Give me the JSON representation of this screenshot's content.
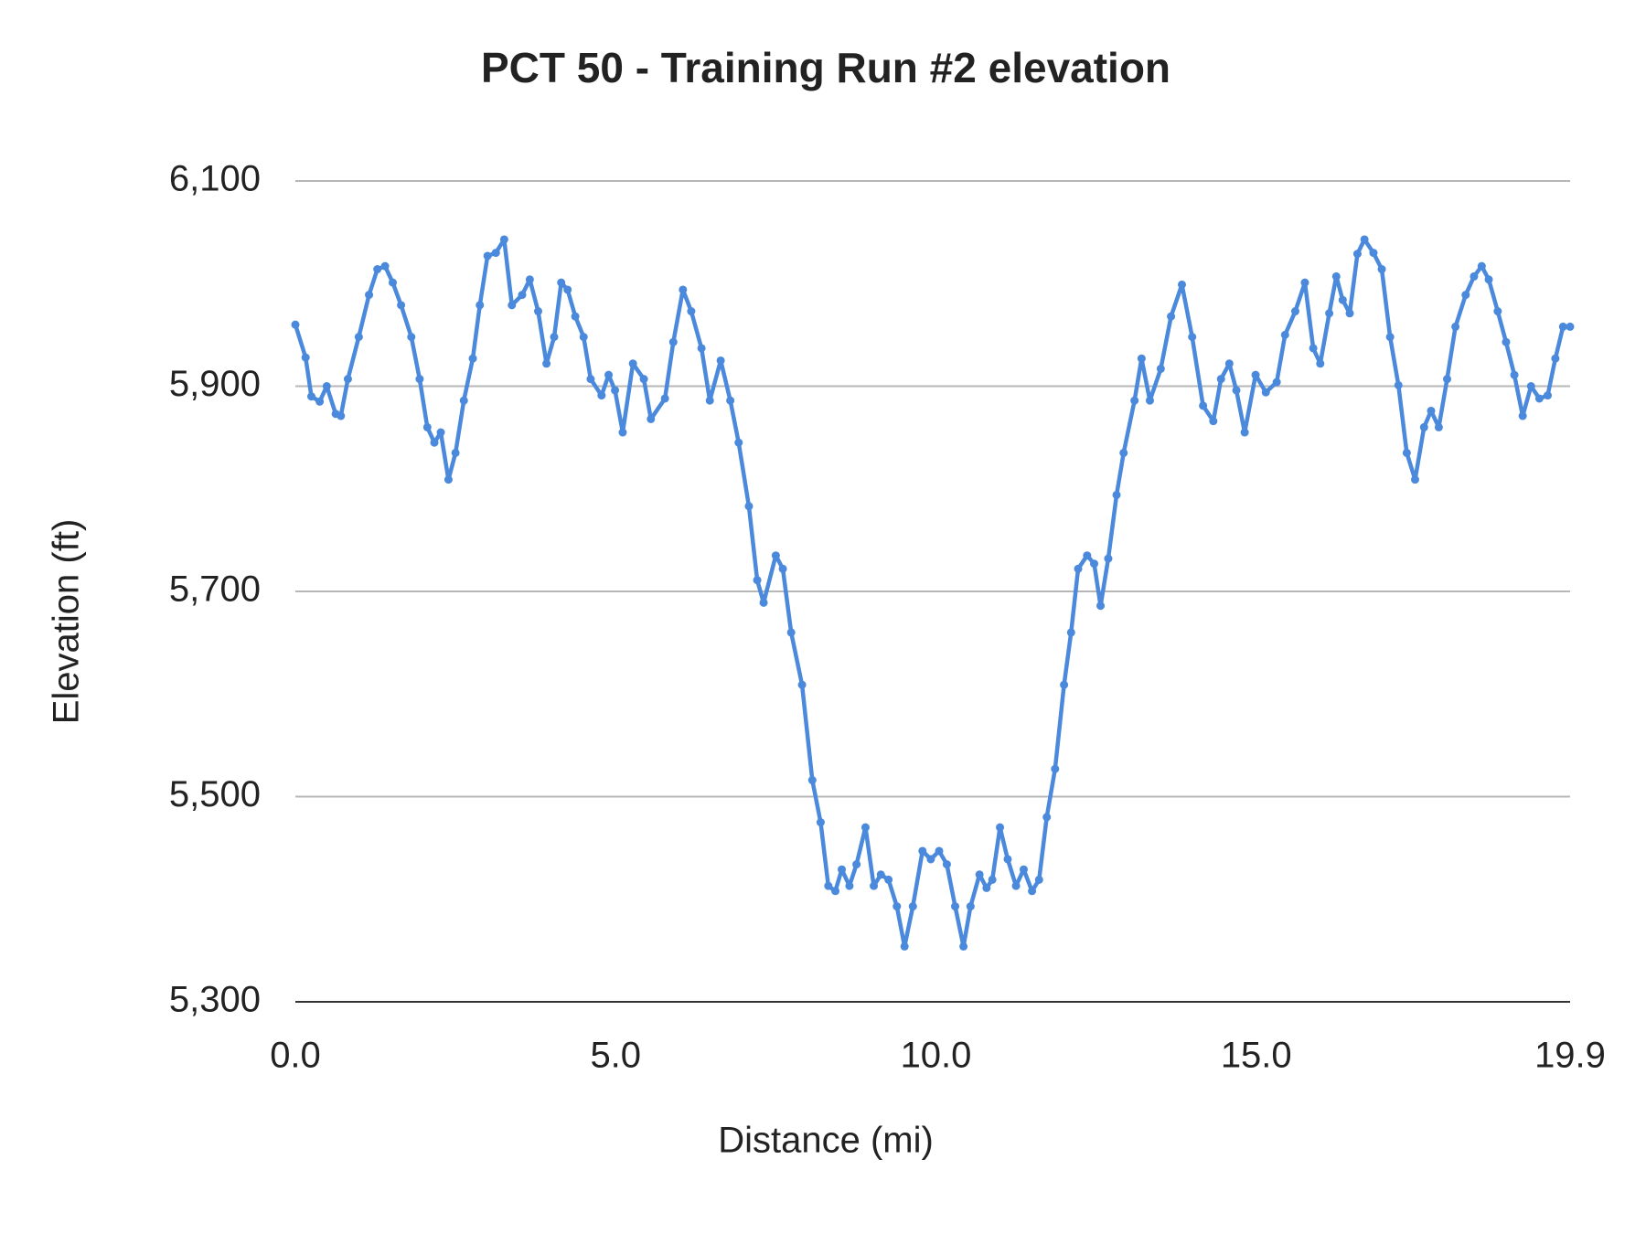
{
  "chart_data": {
    "type": "line",
    "title": "PCT 50 - Training Run #2 elevation",
    "xlabel": "Distance (mi)",
    "ylabel": "Elevation (ft)",
    "color": "#4a89dc",
    "grid": true,
    "xlim": [
      0,
      19.9
    ],
    "xticks": [
      {
        "value": 0,
        "label": "0.0"
      },
      {
        "value": 5,
        "label": "5.0"
      },
      {
        "value": 10,
        "label": "10.0"
      },
      {
        "value": 15,
        "label": "15.0"
      },
      {
        "value": 19.9,
        "label": "19.9"
      }
    ],
    "ylim": [
      5300,
      6100
    ],
    "yticks": [
      {
        "value": 5300,
        "label": "5,300"
      },
      {
        "value": 5500,
        "label": "5,500"
      },
      {
        "value": 5700,
        "label": "5,700"
      },
      {
        "value": 5900,
        "label": "5,900"
      },
      {
        "value": 6100,
        "label": "6,100"
      }
    ],
    "x": [
      0,
      0.16,
      0.25,
      0.38,
      0.49,
      0.63,
      0.71,
      0.82,
      0.99,
      1.15,
      1.28,
      1.4,
      1.52,
      1.65,
      1.81,
      1.94,
      2.06,
      2.17,
      2.27,
      2.39,
      2.5,
      2.63,
      2.77,
      2.88,
      3.0,
      3.13,
      3.26,
      3.38,
      3.54,
      3.66,
      3.79,
      3.92,
      4.04,
      4.15,
      4.25,
      4.37,
      4.5,
      4.61,
      4.78,
      4.89,
      4.99,
      5.11,
      5.27,
      5.44,
      5.55,
      5.77,
      5.9,
      6.05,
      6.18,
      6.34,
      6.47,
      6.64,
      6.79,
      6.92,
      7.08,
      7.21,
      7.31,
      7.5,
      7.61,
      7.74,
      7.91,
      8.07,
      8.2,
      8.32,
      8.43,
      8.53,
      8.65,
      8.76,
      8.9,
      9.03,
      9.14,
      9.26,
      9.39,
      9.51,
      9.64,
      9.79,
      9.92,
      10.05,
      10.17,
      10.3,
      10.43,
      10.54,
      10.68,
      10.79,
      10.88,
      11.0,
      11.12,
      11.25,
      11.37,
      11.5,
      11.61,
      11.73,
      11.86,
      12.0,
      12.11,
      12.22,
      12.36,
      12.47,
      12.57,
      12.69,
      12.82,
      12.93,
      13.1,
      13.21,
      13.34,
      13.51,
      13.67,
      13.84,
      14.0,
      14.17,
      14.33,
      14.45,
      14.58,
      14.69,
      14.82,
      14.99,
      15.15,
      15.32,
      15.45,
      15.61,
      15.76,
      15.89,
      16.0,
      16.14,
      16.25,
      16.35,
      16.46,
      16.58,
      16.69,
      16.83,
      16.96,
      17.09,
      17.22,
      17.35,
      17.48,
      17.62,
      17.73,
      17.85,
      17.98,
      18.11,
      18.27,
      18.4,
      18.52,
      18.63,
      18.77,
      18.9,
      19.03,
      19.16,
      19.29,
      19.42,
      19.55,
      19.67,
      19.79,
      19.9
    ],
    "values": [
      5960,
      5928,
      5890,
      5885,
      5900,
      5873,
      5871,
      5907,
      5948,
      5989,
      6014,
      6017,
      6001,
      5979,
      5948,
      5907,
      5860,
      5845,
      5855,
      5809,
      5835,
      5886,
      5927,
      5979,
      6027,
      6030,
      6043,
      5979,
      5989,
      6004,
      5973,
      5922,
      5948,
      6001,
      5994,
      5968,
      5948,
      5907,
      5891,
      5911,
      5896,
      5855,
      5922,
      5907,
      5868,
      5888,
      5943,
      5994,
      5973,
      5937,
      5886,
      5925,
      5886,
      5845,
      5783,
      5711,
      5689,
      5735,
      5722,
      5660,
      5609,
      5516,
      5475,
      5413,
      5408,
      5429,
      5413,
      5434,
      5470,
      5413,
      5424,
      5419,
      5393,
      5354,
      5393,
      5447,
      5439,
      5447,
      5434,
      5393,
      5354,
      5393,
      5424,
      5411,
      5419,
      5470,
      5439,
      5413,
      5429,
      5408,
      5419,
      5480,
      5527,
      5609,
      5660,
      5722,
      5735,
      5727,
      5686,
      5732,
      5794,
      5835,
      5886,
      5927,
      5886,
      5917,
      5968,
      5999,
      5948,
      5881,
      5866,
      5907,
      5922,
      5896,
      5855,
      5911,
      5894,
      5904,
      5950,
      5973,
      6001,
      5937,
      5922,
      5971,
      6007,
      5984,
      5971,
      6029,
      6043,
      6030,
      6014,
      5948,
      5901,
      5835,
      5809,
      5860,
      5876,
      5860,
      5907,
      5958,
      5989,
      6007,
      6017,
      6004,
      5973,
      5943,
      5911,
      5871,
      5900,
      5888,
      5891,
      5927,
      5958,
      5958
    ]
  }
}
